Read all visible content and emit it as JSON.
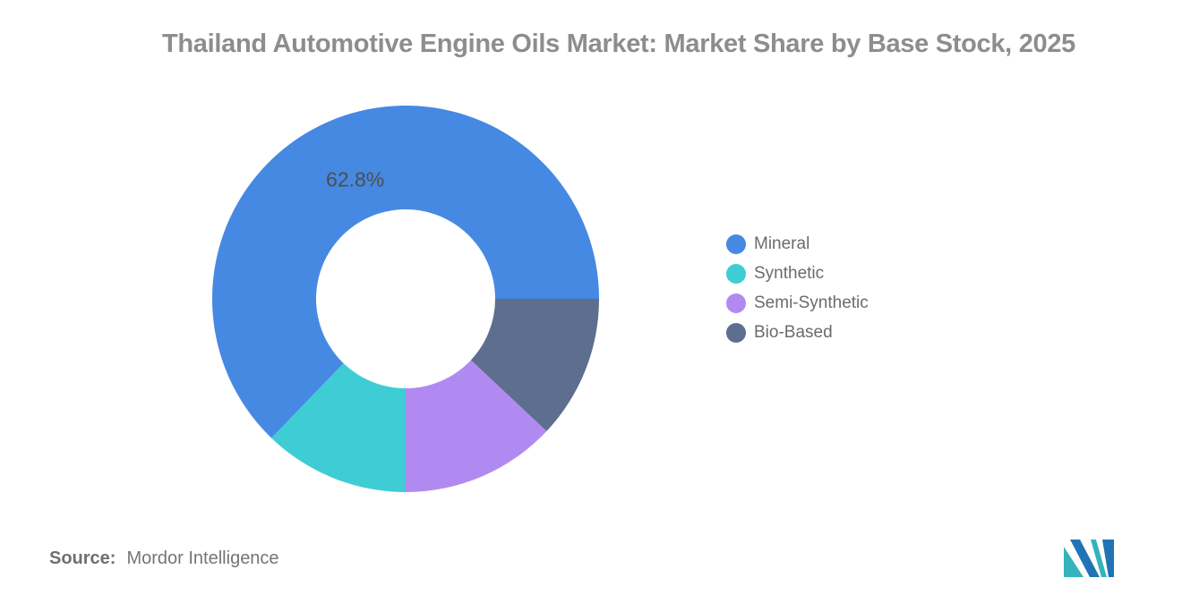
{
  "title": "Thailand Automotive Engine Oils Market: Market Share by Base Stock, 2025",
  "chart_data": {
    "type": "pie",
    "subtype": "donut",
    "title": "Thailand Automotive Engine Oils Market: Market Share by Base Stock, 2025",
    "start_angle_deg": 0,
    "direction": "counterclockwise",
    "inner_radius_ratio": 0.46,
    "legend_position": "right",
    "series": [
      {
        "label": "Mineral",
        "value": 62.8,
        "color": "#4689E2",
        "data_label": "62.8%"
      },
      {
        "label": "Synthetic",
        "value": 12.2,
        "color": "#3ECDD5",
        "data_label": ""
      },
      {
        "label": "Semi-Synthetic",
        "value": 13.0,
        "color": "#B18AF1",
        "data_label": ""
      },
      {
        "label": "Bio-Based",
        "value": 12.0,
        "color": "#5D6E8F",
        "data_label": ""
      }
    ]
  },
  "source": {
    "label": "Source:",
    "value": "Mordor Intelligence"
  },
  "logo": {
    "name": "mordor-intelligence-logo",
    "teal": "#35B3BA",
    "blue": "#2173B4"
  }
}
